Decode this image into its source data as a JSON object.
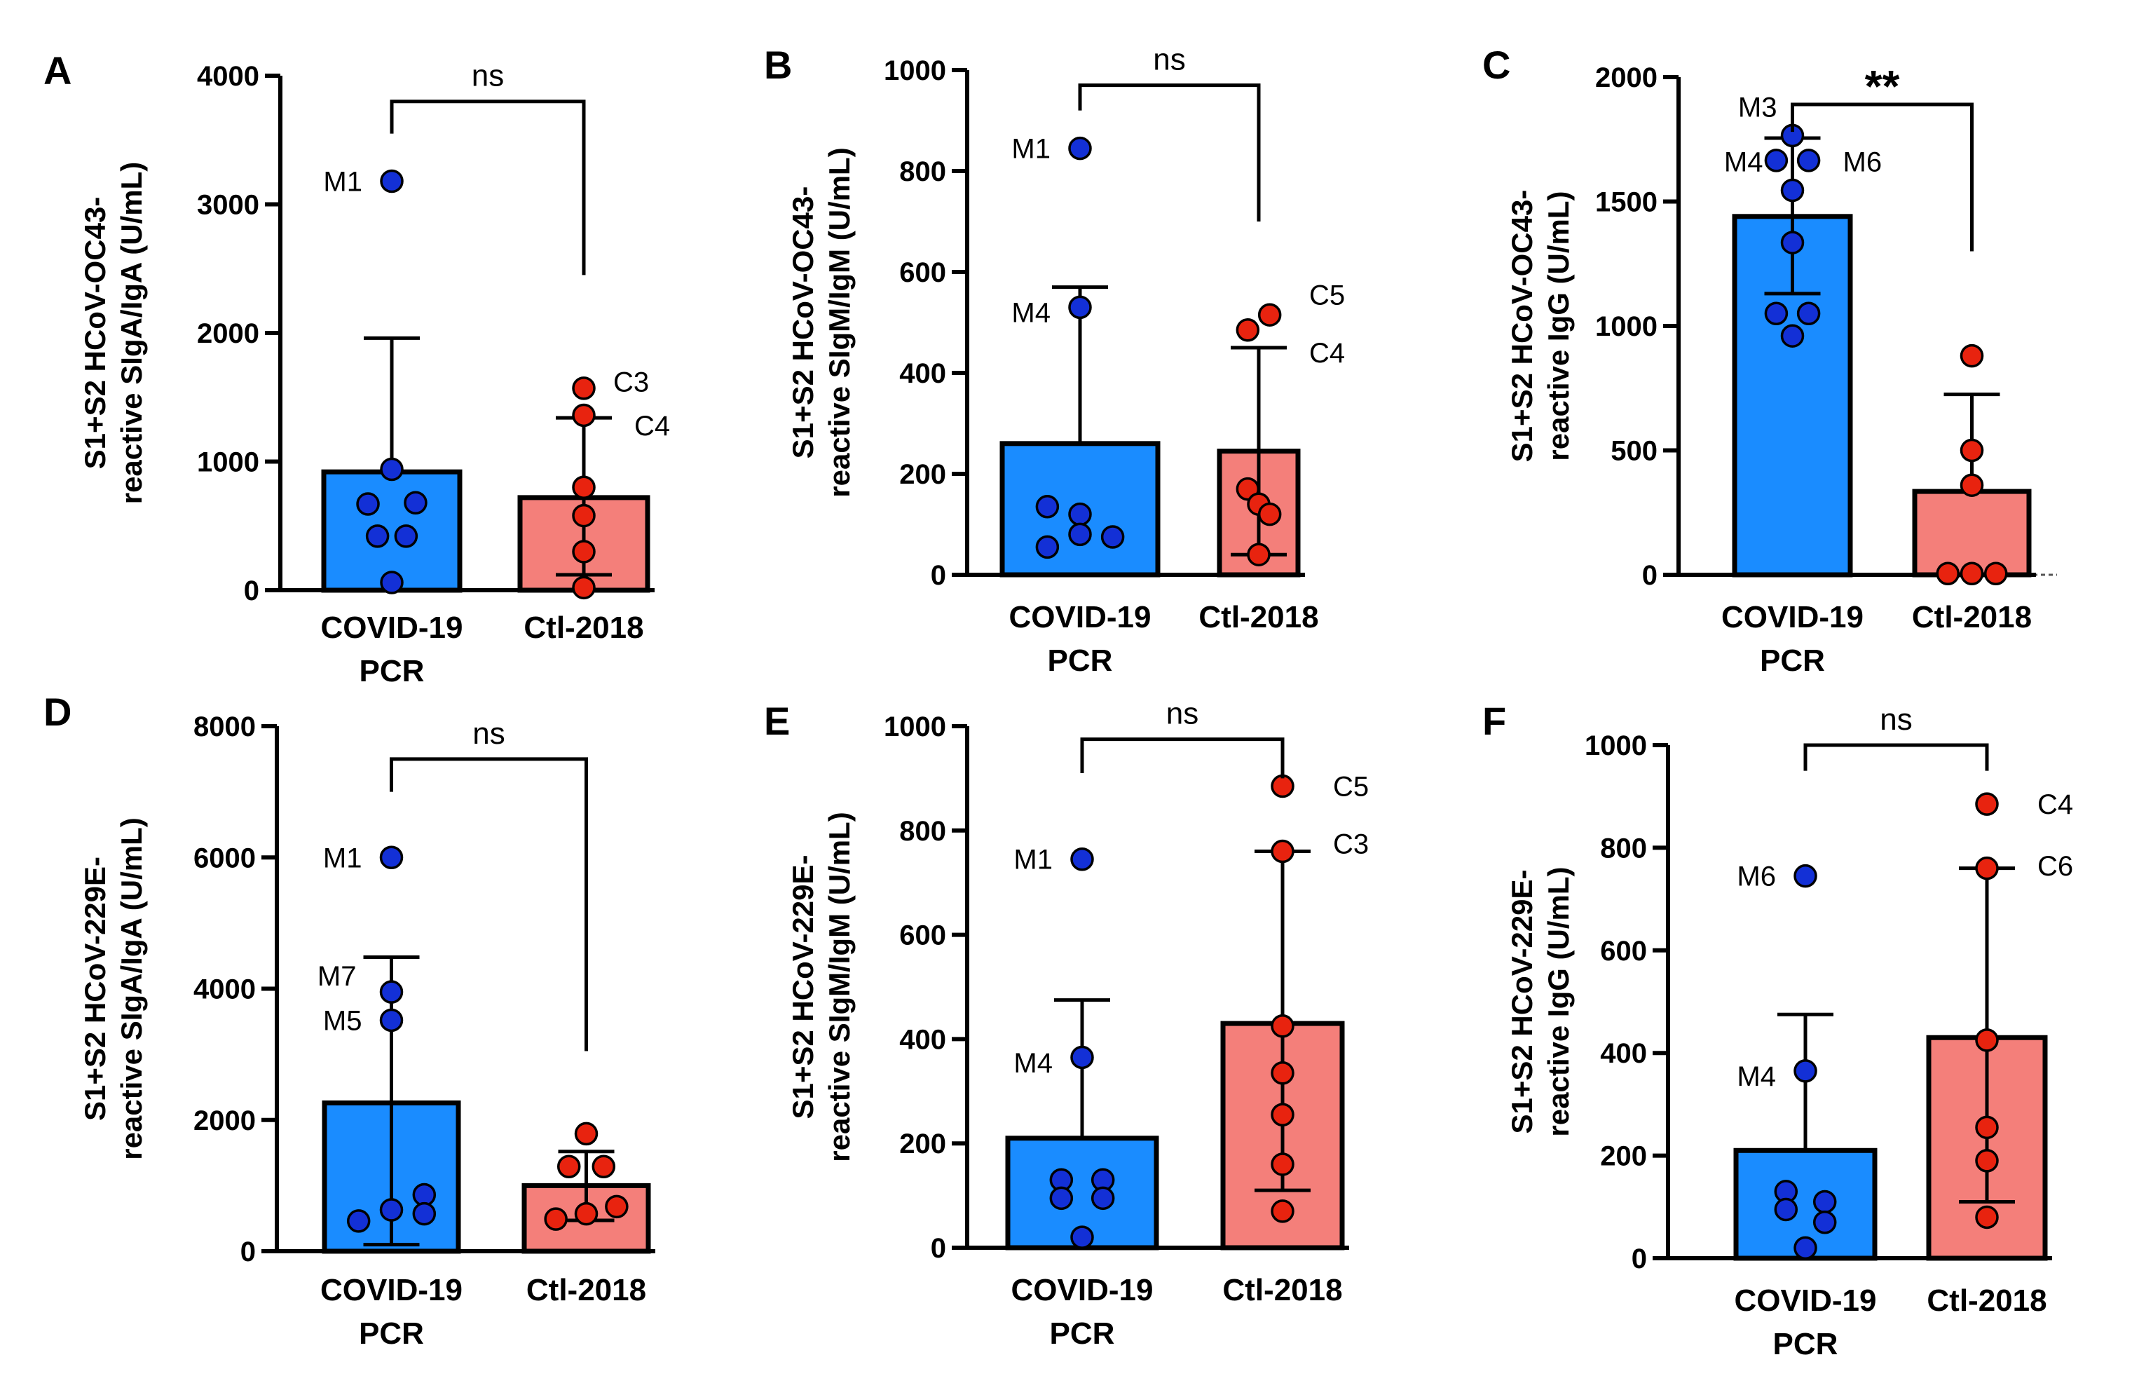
{
  "colors": {
    "covid": "#1a8cff",
    "ctl": "#f47f7a",
    "covid_point": "#1330d6",
    "ctl_point": "#e8230f",
    "axis": "#000000"
  },
  "chart_data": [
    {
      "panel": "A",
      "type": "bar",
      "ylabel_lines": [
        "S1+S2 HCoV-OC43-",
        "reactive SIgA/IgA (U/mL)"
      ],
      "ylim": [
        0,
        4000
      ],
      "yticks": [
        0,
        1000,
        2000,
        3000,
        4000
      ],
      "tick_labels": [
        "0",
        "1000",
        "2000",
        "3000",
        "4000"
      ],
      "categories": [
        [
          "COVID-19",
          "PCR"
        ],
        [
          "Ctl-2018"
        ]
      ],
      "bar_values": [
        920,
        720
      ],
      "error_low": [
        null,
        120
      ],
      "error_high": [
        1960,
        1340
      ],
      "points": [
        [
          {
            "x": 0,
            "v": 3180
          },
          {
            "x": -0.25,
            "v": 670
          },
          {
            "x": 0,
            "v": 940
          },
          {
            "x": 0.25,
            "v": 680
          },
          {
            "x": -0.15,
            "v": 420
          },
          {
            "x": 0.15,
            "v": 420
          },
          {
            "x": 0,
            "v": 60
          }
        ],
        [
          {
            "x": 0,
            "v": 1570
          },
          {
            "x": 0,
            "v": 1360
          },
          {
            "x": 0,
            "v": 800
          },
          {
            "x": 0,
            "v": 580
          },
          {
            "x": 0,
            "v": 300
          },
          {
            "x": 0,
            "v": 20
          }
        ]
      ],
      "point_labels": [
        {
          "text": "M1",
          "group": 0,
          "v": 3180,
          "side": "left"
        },
        {
          "text": "C3",
          "group": 1,
          "v": 1620,
          "side": "right"
        },
        {
          "text": "C4",
          "group": 1,
          "v": 1280,
          "side": "right-far"
        }
      ],
      "significance": "ns",
      "bracket_v": 3800,
      "bracket_drop_v": [
        3550,
        2450
      ],
      "baseline_dashed": false
    },
    {
      "panel": "B",
      "type": "bar",
      "ylabel_lines": [
        "S1+S2 HCoV-OC43-",
        "reactive SIgM/IgM (U/mL)"
      ],
      "ylim": [
        0,
        1000
      ],
      "yticks": [
        0,
        200,
        400,
        600,
        800,
        1000
      ],
      "tick_labels": [
        "0",
        "200",
        "400",
        "600",
        "800",
        "1000"
      ],
      "categories": [
        [
          "COVID-19",
          "PCR"
        ],
        [
          "Ctl-2018"
        ]
      ],
      "bar_values": [
        260,
        245
      ],
      "error_low": [
        null,
        40
      ],
      "error_high": [
        570,
        450
      ],
      "points": [
        [
          {
            "x": 0,
            "v": 845
          },
          {
            "x": 0,
            "v": 530
          },
          {
            "x": -0.3,
            "v": 135
          },
          {
            "x": 0,
            "v": 120
          },
          {
            "x": 0,
            "v": 80
          },
          {
            "x": -0.3,
            "v": 55
          },
          {
            "x": 0.3,
            "v": 75
          }
        ],
        [
          {
            "x": -0.2,
            "v": 485
          },
          {
            "x": 0.2,
            "v": 515
          },
          {
            "x": -0.2,
            "v": 170
          },
          {
            "x": 0,
            "v": 140
          },
          {
            "x": 0.2,
            "v": 120
          },
          {
            "x": 0,
            "v": 40
          }
        ]
      ],
      "point_labels": [
        {
          "text": "M1",
          "group": 0,
          "v": 845,
          "side": "left"
        },
        {
          "text": "M4",
          "group": 0,
          "v": 520,
          "side": "left"
        },
        {
          "text": "C5",
          "group": 1,
          "v": 555,
          "side": "right-far"
        },
        {
          "text": "C4",
          "group": 1,
          "v": 440,
          "side": "right-far"
        }
      ],
      "significance": "ns",
      "bracket_v": 970,
      "bracket_drop_v": [
        920,
        700
      ],
      "baseline_dashed": false
    },
    {
      "panel": "C",
      "type": "bar",
      "ylabel_lines": [
        "S1+S2 HCoV-OC43-",
        "reactive IgG (U/mL)"
      ],
      "ylim": [
        0,
        2000
      ],
      "yticks": [
        0,
        500,
        1000,
        1500,
        2000
      ],
      "tick_labels": [
        "0",
        "500",
        "1000",
        "1500",
        "2000"
      ],
      "categories": [
        [
          "COVID-19",
          "PCR"
        ],
        [
          "Ctl-2018"
        ]
      ],
      "bar_values": [
        1440,
        335
      ],
      "error_low": [
        1130,
        null
      ],
      "error_high": [
        1755,
        725
      ],
      "points": [
        [
          {
            "x": 0,
            "v": 1765
          },
          {
            "x": -0.2,
            "v": 1665
          },
          {
            "x": 0.2,
            "v": 1665
          },
          {
            "x": 0,
            "v": 1545
          },
          {
            "x": 0,
            "v": 1335
          },
          {
            "x": -0.2,
            "v": 1050
          },
          {
            "x": 0.2,
            "v": 1050
          },
          {
            "x": 0,
            "v": 960
          }
        ],
        [
          {
            "x": 0,
            "v": 880
          },
          {
            "x": 0,
            "v": 500
          },
          {
            "x": 0,
            "v": 360
          },
          {
            "x": -0.3,
            "v": 5
          },
          {
            "x": 0,
            "v": 5
          },
          {
            "x": 0.3,
            "v": 5
          }
        ]
      ],
      "point_labels": [
        {
          "text": "M3",
          "group": 0,
          "v": 1880,
          "side": "left-near"
        },
        {
          "text": "M4",
          "group": 0,
          "v": 1660,
          "side": "left"
        },
        {
          "text": "M6",
          "group": 0,
          "v": 1660,
          "side": "right-far"
        }
      ],
      "significance": "**",
      "bracket_v": 1890,
      "bracket_drop_v": [
        1780,
        1300
      ],
      "baseline_dashed": true
    },
    {
      "panel": "D",
      "type": "bar",
      "ylabel_lines": [
        "S1+S2 HCoV-229E-",
        "reactive SIgA/IgA (U/mL)"
      ],
      "ylim": [
        0,
        8000
      ],
      "yticks": [
        0,
        2000,
        4000,
        6000,
        8000
      ],
      "tick_labels": [
        "0",
        "2000",
        "4000",
        "6000",
        "8000"
      ],
      "categories": [
        [
          "COVID-19",
          "PCR"
        ],
        [
          "Ctl-2018"
        ]
      ],
      "bar_values": [
        2260,
        1000
      ],
      "error_low": [
        100,
        470
      ],
      "error_high": [
        4480,
        1520
      ],
      "points": [
        [
          {
            "x": 0,
            "v": 6000
          },
          {
            "x": 0,
            "v": 3950
          },
          {
            "x": 0,
            "v": 3520
          },
          {
            "x": -0.35,
            "v": 460
          },
          {
            "x": 0,
            "v": 630
          },
          {
            "x": 0.35,
            "v": 860
          },
          {
            "x": 0.35,
            "v": 570
          }
        ],
        [
          {
            "x": 0,
            "v": 1790
          },
          {
            "x": -0.2,
            "v": 1290
          },
          {
            "x": 0.2,
            "v": 1290
          },
          {
            "x": -0.35,
            "v": 490
          },
          {
            "x": 0,
            "v": 570
          },
          {
            "x": 0.35,
            "v": 680
          }
        ]
      ],
      "point_labels": [
        {
          "text": "M1",
          "group": 0,
          "v": 6000,
          "side": "left"
        },
        {
          "text": "M7",
          "group": 0,
          "v": 4200,
          "side": "left-far"
        },
        {
          "text": "M5",
          "group": 0,
          "v": 3520,
          "side": "left"
        }
      ],
      "significance": "ns",
      "bracket_v": 7500,
      "bracket_drop_v": [
        7000,
        3050
      ],
      "baseline_dashed": false
    },
    {
      "panel": "E",
      "type": "bar",
      "ylabel_lines": [
        "S1+S2 HCoV-229E-",
        "reactive SIgM/IgM (U/mL)"
      ],
      "ylim": [
        0,
        1000
      ],
      "yticks": [
        0,
        200,
        400,
        600,
        800,
        1000
      ],
      "tick_labels": [
        "0",
        "200",
        "400",
        "600",
        "800",
        "1000"
      ],
      "categories": [
        [
          "COVID-19",
          "PCR"
        ],
        [
          "Ctl-2018"
        ]
      ],
      "bar_values": [
        210,
        430
      ],
      "error_low": [
        null,
        110
      ],
      "error_high": [
        475,
        760
      ],
      "points": [
        [
          {
            "x": 0,
            "v": 745
          },
          {
            "x": 0,
            "v": 365
          },
          {
            "x": -0.2,
            "v": 130
          },
          {
            "x": 0.2,
            "v": 130
          },
          {
            "x": -0.2,
            "v": 95
          },
          {
            "x": 0.2,
            "v": 95
          },
          {
            "x": 0,
            "v": 20
          }
        ],
        [
          {
            "x": 0,
            "v": 885
          },
          {
            "x": 0,
            "v": 760
          },
          {
            "x": 0,
            "v": 425
          },
          {
            "x": 0,
            "v": 335
          },
          {
            "x": 0,
            "v": 255
          },
          {
            "x": 0,
            "v": 160
          },
          {
            "x": 0,
            "v": 70
          }
        ]
      ],
      "point_labels": [
        {
          "text": "M1",
          "group": 0,
          "v": 745,
          "side": "left"
        },
        {
          "text": "M4",
          "group": 0,
          "v": 355,
          "side": "left"
        },
        {
          "text": "C5",
          "group": 1,
          "v": 885,
          "side": "right-far"
        },
        {
          "text": "C3",
          "group": 1,
          "v": 775,
          "side": "right-far"
        }
      ],
      "significance": "ns",
      "bracket_v": 975,
      "bracket_drop_v": [
        910,
        900
      ],
      "baseline_dashed": false
    },
    {
      "panel": "F",
      "type": "bar",
      "ylabel_lines": [
        "S1+S2 HCoV-229E-",
        "reactive IgG (U/mL)"
      ],
      "ylim": [
        0,
        1000
      ],
      "yticks": [
        0,
        200,
        400,
        600,
        800,
        1000
      ],
      "tick_labels": [
        "0",
        "200",
        "400",
        "600",
        "800",
        "1000"
      ],
      "categories": [
        [
          "COVID-19",
          "PCR"
        ],
        [
          "Ctl-2018"
        ]
      ],
      "bar_values": [
        210,
        430
      ],
      "error_low": [
        null,
        110
      ],
      "error_high": [
        475,
        760
      ],
      "points": [
        [
          {
            "x": 0,
            "v": 745
          },
          {
            "x": 0,
            "v": 365
          },
          {
            "x": -0.2,
            "v": 130
          },
          {
            "x": 0.2,
            "v": 110
          },
          {
            "x": -0.2,
            "v": 95
          },
          {
            "x": 0.2,
            "v": 70
          },
          {
            "x": 0,
            "v": 20
          }
        ],
        [
          {
            "x": 0,
            "v": 885
          },
          {
            "x": 0,
            "v": 760
          },
          {
            "x": 0,
            "v": 425
          },
          {
            "x": 0,
            "v": 255
          },
          {
            "x": 0,
            "v": 190
          },
          {
            "x": 0,
            "v": 80
          }
        ]
      ],
      "point_labels": [
        {
          "text": "M6",
          "group": 0,
          "v": 745,
          "side": "left"
        },
        {
          "text": "M4",
          "group": 0,
          "v": 355,
          "side": "left"
        },
        {
          "text": "C4",
          "group": 1,
          "v": 885,
          "side": "right-far"
        },
        {
          "text": "C6",
          "group": 1,
          "v": 765,
          "side": "right-far"
        }
      ],
      "significance": "ns",
      "bracket_v": 1000,
      "bracket_drop_v": [
        950,
        950
      ],
      "baseline_dashed": false
    }
  ]
}
